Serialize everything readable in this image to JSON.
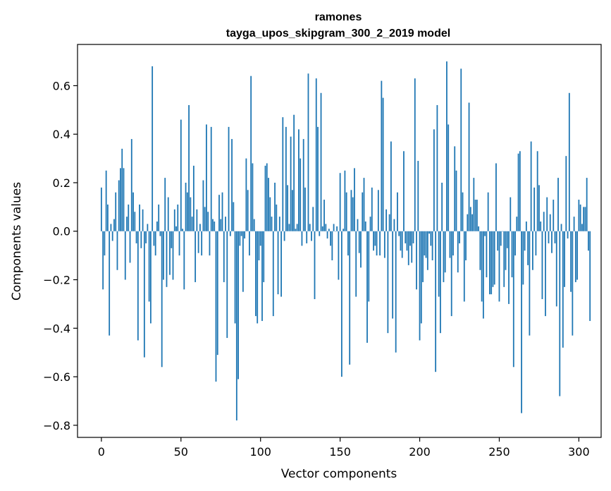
{
  "chart_data": {
    "type": "bar",
    "title": "ramones",
    "subtitle": "tayga_upos_skipgram_300_2_2019 model",
    "xlabel": "Vector components",
    "ylabel": "Components values",
    "xlim": [
      -15,
      314
    ],
    "ylim": [
      -0.85,
      0.77
    ],
    "x_ticks": [
      0,
      50,
      100,
      150,
      200,
      250,
      300
    ],
    "x_tick_labels": [
      "0",
      "50",
      "100",
      "150",
      "200",
      "250",
      "300"
    ],
    "y_ticks": [
      -0.8,
      -0.6,
      -0.4,
      -0.2,
      0.0,
      0.2,
      0.4,
      0.6
    ],
    "y_tick_labels": [
      "−0.8",
      "−0.6",
      "−0.4",
      "−0.2",
      "0.0",
      "0.2",
      "0.4",
      "0.6"
    ],
    "bar_color": "#1f77b4",
    "grid": false,
    "values": [
      0.18,
      -0.24,
      -0.1,
      0.25,
      0.11,
      -0.43,
      0.03,
      -0.04,
      0.05,
      0.16,
      -0.16,
      0.21,
      0.26,
      0.34,
      0.26,
      -0.2,
      0.06,
      0.11,
      -0.13,
      0.38,
      0.16,
      0.08,
      -0.05,
      -0.45,
      0.11,
      -0.07,
      0.09,
      -0.52,
      -0.05,
      0.03,
      -0.29,
      -0.38,
      0.68,
      -0.06,
      -0.1,
      0.04,
      0.11,
      -0.02,
      -0.56,
      -0.2,
      0.22,
      -0.23,
      0.14,
      -0.18,
      -0.07,
      -0.2,
      0.09,
      0.02,
      0.11,
      -0.1,
      0.46,
      0.01,
      -0.24,
      0.2,
      0.16,
      0.52,
      0.14,
      0.06,
      0.27,
      -0.21,
      0.09,
      -0.09,
      0.03,
      -0.1,
      0.21,
      0.1,
      0.44,
      0.08,
      -0.1,
      0.43,
      0.05,
      0.04,
      -0.62,
      -0.51,
      0.15,
      0.05,
      0.16,
      -0.21,
      0.06,
      -0.44,
      0.43,
      -0.02,
      0.38,
      0.12,
      -0.38,
      -0.78,
      -0.61,
      -0.06,
      -0.02,
      -0.25,
      -0.03,
      0.3,
      0.17,
      -0.1,
      0.64,
      0.28,
      0.05,
      -0.35,
      -0.38,
      -0.12,
      -0.06,
      -0.37,
      -0.21,
      0.27,
      0.28,
      0.22,
      0.14,
      0.06,
      -0.35,
      0.2,
      0.11,
      -0.26,
      0.06,
      -0.27,
      0.47,
      -0.04,
      0.43,
      0.19,
      0.03,
      0.39,
      0.17,
      0.48,
      0.01,
      0.03,
      0.42,
      0.3,
      -0.06,
      0.38,
      0.18,
      -0.05,
      0.65,
      0.03,
      -0.04,
      0.1,
      -0.28,
      0.63,
      0.43,
      -0.02,
      0.57,
      0.02,
      0.13,
      0.03,
      -0.03,
      0.01,
      -0.06,
      -0.12,
      0.03,
      0.0,
      0.02,
      -0.2,
      0.24,
      -0.6,
      0.01,
      0.25,
      0.16,
      -0.1,
      -0.55,
      0.17,
      0.14,
      0.26,
      -0.27,
      0.05,
      -0.09,
      -0.15,
      0.16,
      0.22,
      0.04,
      -0.46,
      -0.29,
      0.06,
      0.18,
      -0.08,
      -0.06,
      -0.1,
      0.17,
      -0.1,
      0.62,
      0.55,
      -0.11,
      0.09,
      -0.42,
      0.07,
      0.37,
      -0.36,
      0.05,
      -0.5,
      0.16,
      -0.02,
      -0.08,
      -0.11,
      0.33,
      -0.05,
      -0.08,
      -0.14,
      -0.06,
      -0.13,
      -0.05,
      0.63,
      -0.24,
      0.29,
      -0.45,
      -0.38,
      -0.21,
      -0.1,
      -0.11,
      -0.16,
      -0.01,
      -0.06,
      -0.12,
      0.42,
      -0.58,
      0.52,
      -0.27,
      -0.42,
      0.2,
      -0.21,
      -0.17,
      0.7,
      0.44,
      -0.11,
      -0.35,
      -0.1,
      0.35,
      0.25,
      -0.17,
      -0.05,
      0.67,
      0.16,
      -0.29,
      -0.12,
      0.07,
      0.53,
      0.1,
      0.07,
      0.22,
      0.13,
      0.13,
      0.02,
      -0.16,
      -0.29,
      -0.36,
      -0.02,
      -0.19,
      0.16,
      -0.26,
      -0.26,
      -0.23,
      -0.22,
      0.28,
      -0.08,
      -0.29,
      -0.06,
      0.0,
      -0.23,
      -0.16,
      -0.07,
      -0.3,
      0.14,
      -0.19,
      -0.56,
      -0.1,
      0.06,
      0.32,
      0.33,
      -0.75,
      -0.22,
      -0.08,
      0.04,
      -0.14,
      -0.43,
      0.37,
      -0.16,
      0.18,
      -0.1,
      0.33,
      0.19,
      0.04,
      -0.28,
      0.08,
      -0.35,
      0.14,
      -0.05,
      0.07,
      -0.09,
      0.13,
      -0.05,
      -0.31,
      0.22,
      -0.68,
      0.03,
      -0.48,
      -0.23,
      0.31,
      -0.03,
      0.57,
      -0.25,
      -0.43,
      0.06,
      -0.21,
      -0.2,
      0.13,
      0.11,
      0.03,
      0.1,
      0.1,
      0.22,
      -0.08,
      -0.37
    ]
  }
}
